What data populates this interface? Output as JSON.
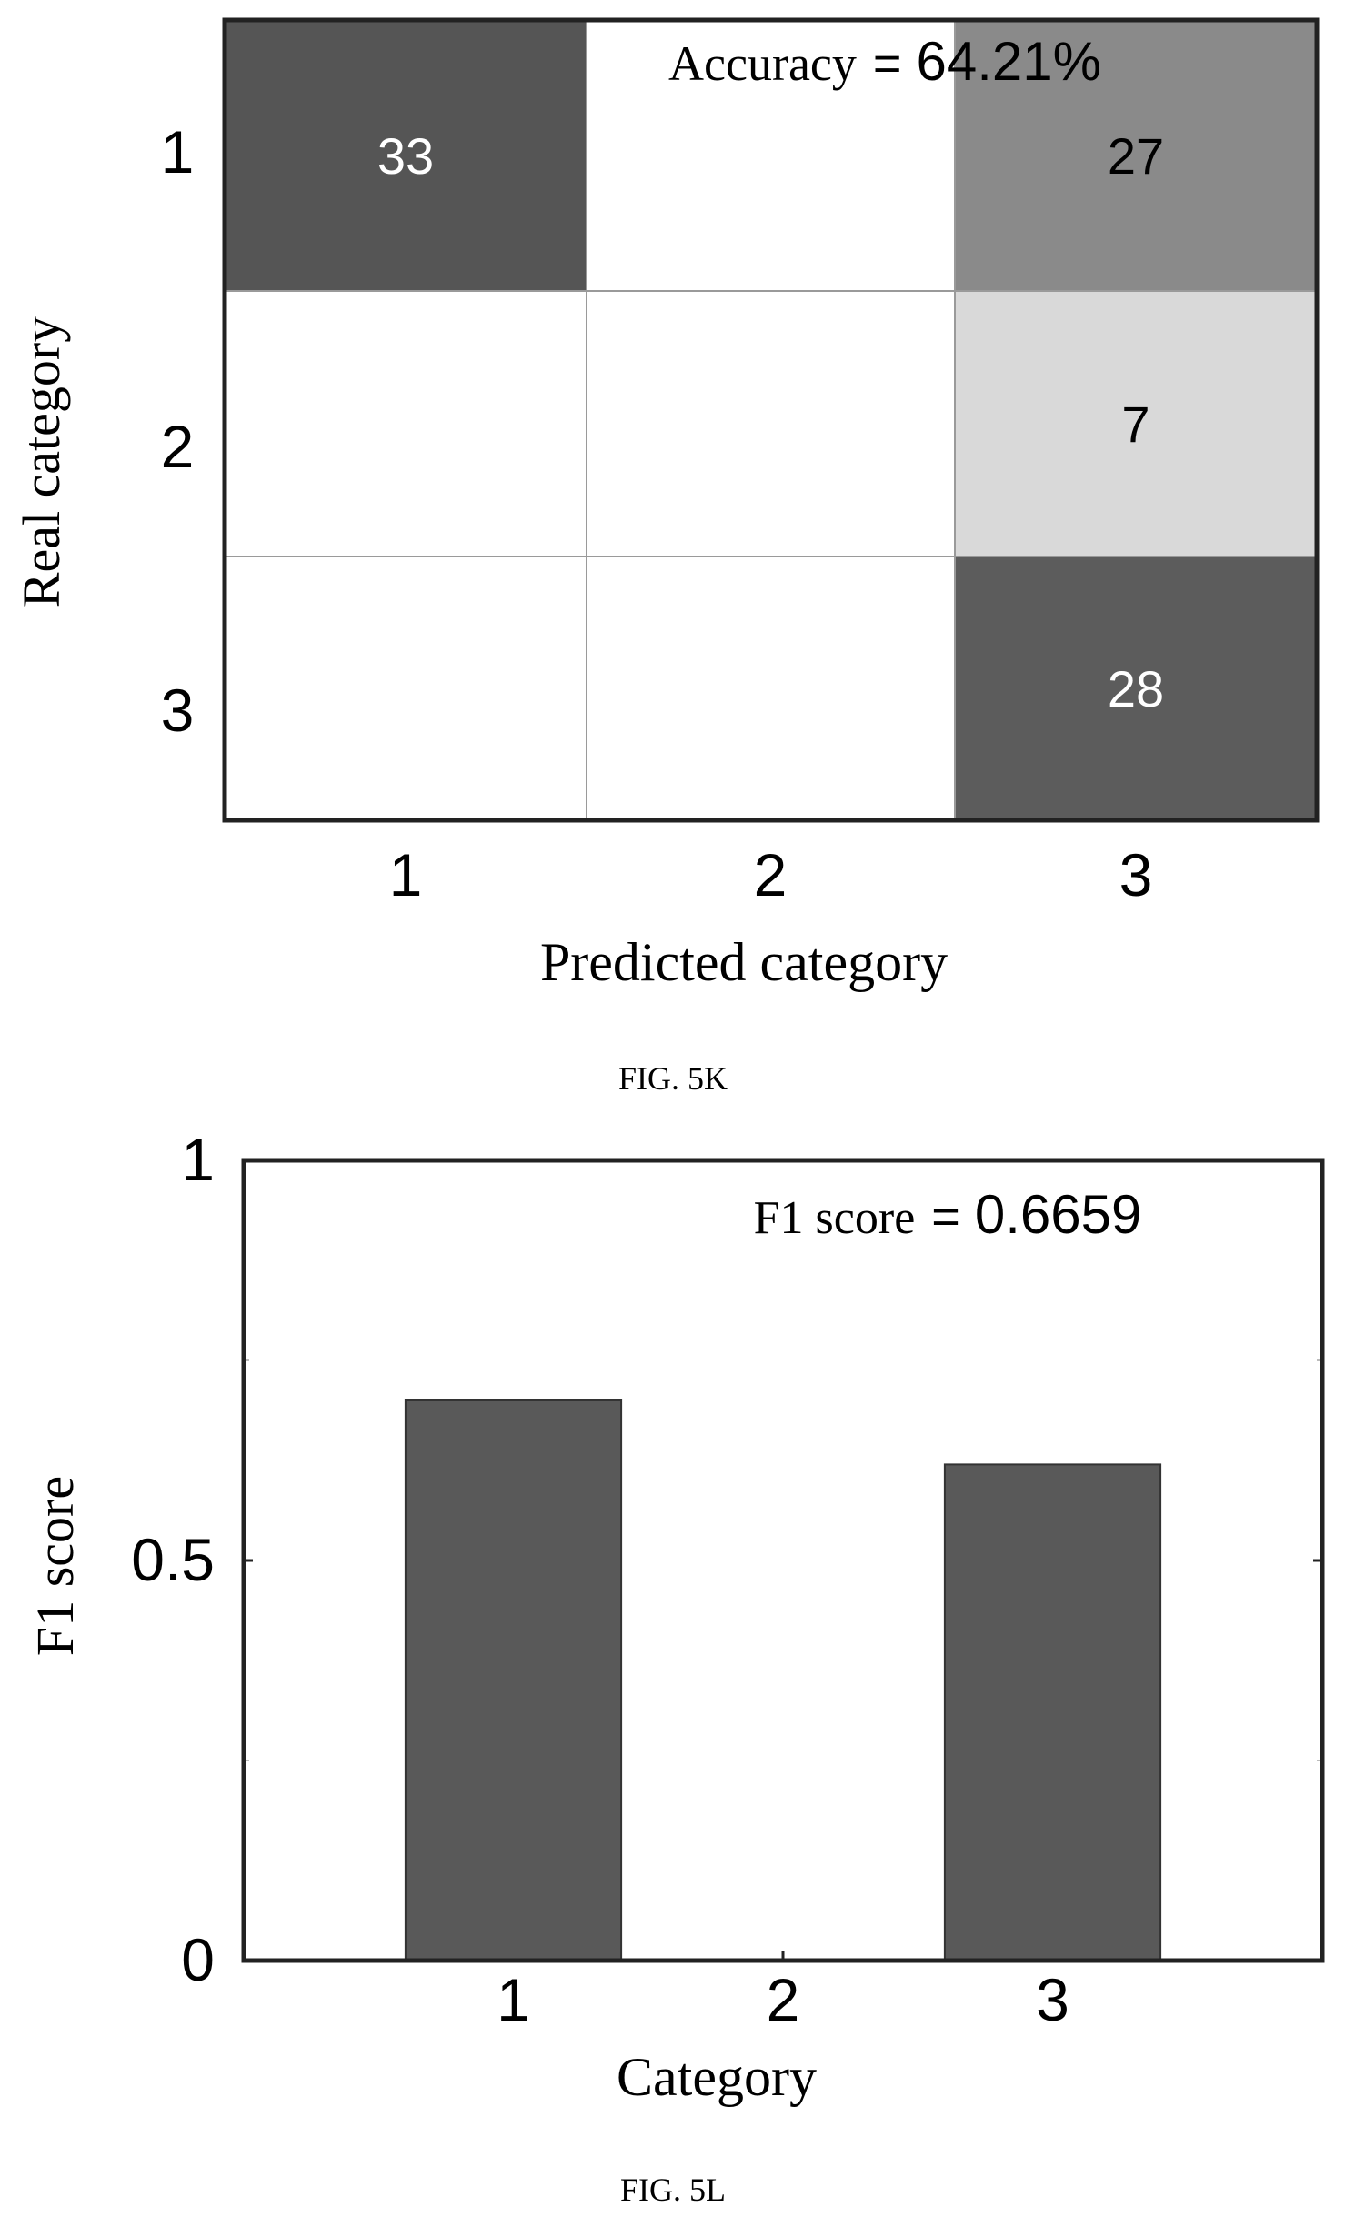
{
  "figures": [
    {
      "caption": "FIG. 5K",
      "chart_data": {
        "type": "heatmap",
        "x_categories": [
          "1",
          "2",
          "3"
        ],
        "y_categories": [
          "1",
          "2",
          "3"
        ],
        "xlabel": "Predicted category",
        "ylabel": "Real category",
        "annotation": {
          "label": "Accuracy",
          "equals": "=",
          "value": "64.21%"
        },
        "cells": [
          {
            "real": "1",
            "predicted": "1",
            "value": 33,
            "shade": "#555555",
            "text_color": "#ffffff"
          },
          {
            "real": "1",
            "predicted": "2",
            "value": null,
            "shade": "#ffffff",
            "text_color": "#000000"
          },
          {
            "real": "1",
            "predicted": "3",
            "value": 27,
            "shade": "#8a8a8a",
            "text_color": "#000000"
          },
          {
            "real": "2",
            "predicted": "1",
            "value": null,
            "shade": "#ffffff",
            "text_color": "#000000"
          },
          {
            "real": "2",
            "predicted": "2",
            "value": null,
            "shade": "#ffffff",
            "text_color": "#000000"
          },
          {
            "real": "2",
            "predicted": "3",
            "value": 7,
            "shade": "#d9d9d9",
            "text_color": "#000000"
          },
          {
            "real": "3",
            "predicted": "1",
            "value": null,
            "shade": "#ffffff",
            "text_color": "#000000"
          },
          {
            "real": "3",
            "predicted": "2",
            "value": null,
            "shade": "#ffffff",
            "text_color": "#000000"
          },
          {
            "real": "3",
            "predicted": "3",
            "value": 28,
            "shade": "#5c5c5c",
            "text_color": "#ffffff"
          }
        ]
      }
    },
    {
      "caption": "FIG. 5L",
      "chart_data": {
        "type": "bar",
        "categories": [
          "1",
          "2",
          "3"
        ],
        "values": [
          0.7,
          0.0,
          0.62
        ],
        "xlabel": "Category",
        "ylabel": "F1 score",
        "ylim": [
          0,
          1
        ],
        "yticks": [
          "0",
          "0.5",
          "1"
        ],
        "bar_color": "#595959",
        "annotation": {
          "label": "F1 score",
          "equals": "=",
          "value": "0.6659"
        }
      }
    }
  ]
}
